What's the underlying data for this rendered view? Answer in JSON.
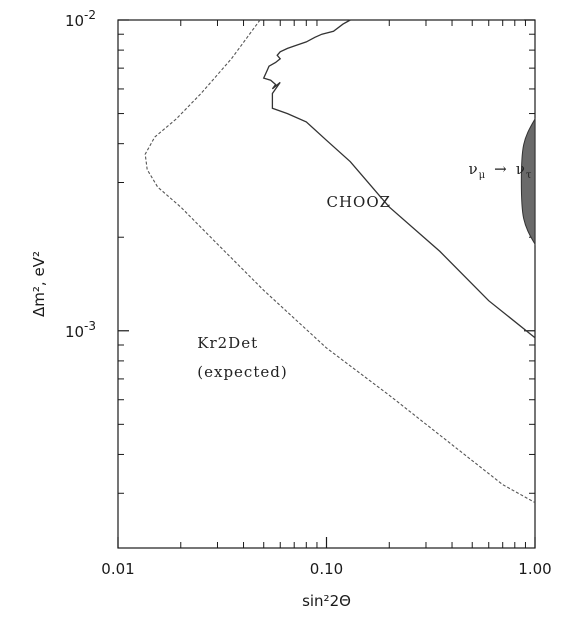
{
  "chart_data": {
    "type": "line",
    "xscale": "log",
    "yscale": "log",
    "xlim": [
      0.01,
      1.0
    ],
    "ylim": [
      0.0002,
      0.01
    ],
    "xticks": [
      {
        "value": 0.01,
        "label": "0.01"
      },
      {
        "value": 0.1,
        "label": "0.10"
      },
      {
        "value": 1.0,
        "label": "1.00"
      }
    ],
    "yticks": [
      {
        "value": 0.001,
        "base": "10",
        "exp": "-3"
      },
      {
        "value": 0.01,
        "base": "10",
        "exp": "-2"
      }
    ],
    "xlabel": "sin²2Θ",
    "ylabel": "Δm², eV²",
    "grid": false,
    "series": [
      {
        "name": "Kr2Det (expected)",
        "style": "dashed",
        "color": "#555555",
        "points": [
          [
            0.048,
            0.01
          ],
          [
            0.035,
            0.0075
          ],
          [
            0.025,
            0.0058
          ],
          [
            0.019,
            0.0048
          ],
          [
            0.015,
            0.0042
          ],
          [
            0.0135,
            0.0037
          ],
          [
            0.0138,
            0.0033
          ],
          [
            0.0155,
            0.0029
          ],
          [
            0.02,
            0.0025
          ],
          [
            0.03,
            0.0019
          ],
          [
            0.05,
            0.00135
          ],
          [
            0.1,
            0.00088
          ],
          [
            0.2,
            0.00062
          ],
          [
            0.4,
            0.00043
          ],
          [
            0.7,
            0.00032
          ],
          [
            1.0,
            0.00028
          ]
        ]
      },
      {
        "name": "CHOOZ",
        "style": "solid",
        "color": "#333333",
        "points": [
          [
            0.13,
            0.01
          ],
          [
            0.12,
            0.0097
          ],
          [
            0.108,
            0.0092
          ],
          [
            0.095,
            0.009
          ],
          [
            0.088,
            0.0088
          ],
          [
            0.08,
            0.0085
          ],
          [
            0.072,
            0.0083
          ],
          [
            0.065,
            0.0081
          ],
          [
            0.06,
            0.0079
          ],
          [
            0.058,
            0.0077
          ],
          [
            0.06,
            0.0075
          ],
          [
            0.057,
            0.0073
          ],
          [
            0.053,
            0.0071
          ],
          [
            0.052,
            0.0069
          ],
          [
            0.05,
            0.0065
          ],
          [
            0.054,
            0.0064
          ],
          [
            0.057,
            0.0062
          ],
          [
            0.055,
            0.006
          ],
          [
            0.06,
            0.0063
          ],
          [
            0.055,
            0.0058
          ],
          [
            0.055,
            0.0052
          ],
          [
            0.065,
            0.005
          ],
          [
            0.08,
            0.0047
          ],
          [
            0.1,
            0.0041
          ],
          [
            0.13,
            0.0035
          ],
          [
            0.2,
            0.0025
          ],
          [
            0.35,
            0.0018
          ],
          [
            0.6,
            0.00125
          ],
          [
            1.0,
            0.00095
          ]
        ]
      }
    ],
    "region": {
      "name": "νμ → ντ",
      "x_right": 1.0,
      "x_left_min": 0.86,
      "y_range": [
        0.0019,
        0.0048
      ],
      "fill": "#6a6a6a"
    },
    "annotations": [
      {
        "text": "CHOOZ",
        "x": 0.1,
        "y": 0.0025
      },
      {
        "text": "Kr2Det",
        "x": 0.024,
        "y": 0.00088
      },
      {
        "text": "(expected)",
        "x": 0.024,
        "y": 0.00071
      }
    ],
    "region_label": {
      "nu1": "ν",
      "sub1": "μ",
      "arrow": "→",
      "nu2": "ν",
      "sub2": "τ",
      "x": 0.48,
      "y": 0.0032
    }
  }
}
